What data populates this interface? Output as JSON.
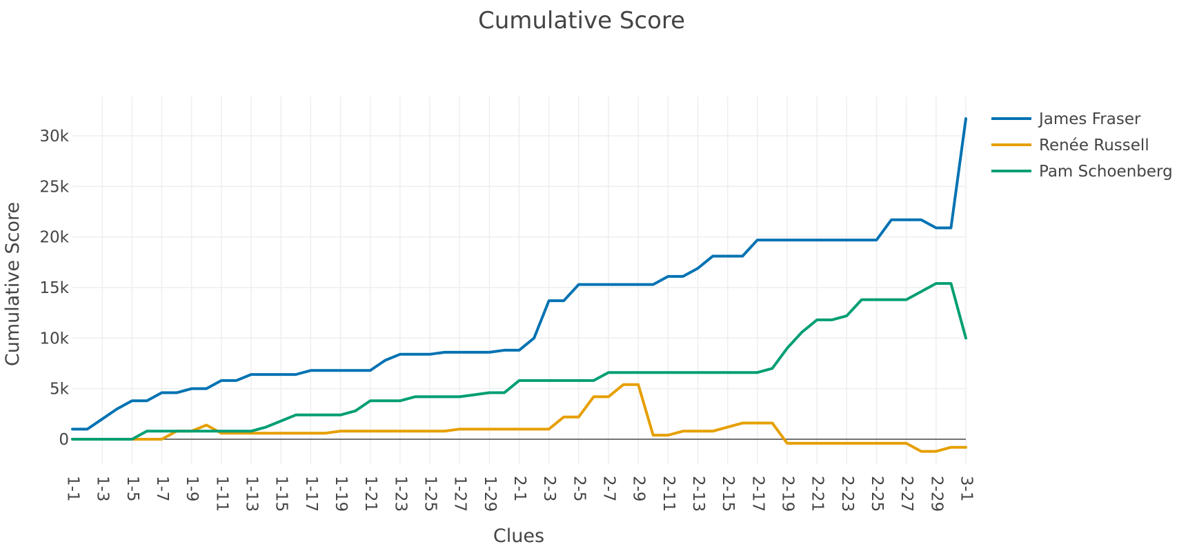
{
  "chart_data": {
    "type": "line",
    "title": "Cumulative Score",
    "xlabel": "Clues",
    "ylabel": "Cumulative Score",
    "categories": [
      "1-1",
      "1-2",
      "1-3",
      "1-4",
      "1-5",
      "1-6",
      "1-7",
      "1-8",
      "1-9",
      "1-10",
      "1-11",
      "1-12",
      "1-13",
      "1-14",
      "1-15",
      "1-16",
      "1-17",
      "1-18",
      "1-19",
      "1-20",
      "1-21",
      "1-22",
      "1-23",
      "1-24",
      "1-25",
      "1-26",
      "1-27",
      "1-28",
      "1-29",
      "1-30",
      "2-1",
      "2-2",
      "2-3",
      "2-4",
      "2-5",
      "2-6",
      "2-7",
      "2-8",
      "2-9",
      "2-10",
      "2-11",
      "2-12",
      "2-13",
      "2-14",
      "2-15",
      "2-16",
      "2-17",
      "2-18",
      "2-19",
      "2-20",
      "2-21",
      "2-22",
      "2-23",
      "2-24",
      "2-25",
      "2-26",
      "2-27",
      "2-28",
      "2-29",
      "2-30",
      "3-1"
    ],
    "tick_labels": [
      "1-1",
      "1-3",
      "1-5",
      "1-7",
      "1-9",
      "1-11",
      "1-13",
      "1-15",
      "1-17",
      "1-19",
      "1-21",
      "1-23",
      "1-25",
      "1-27",
      "1-29",
      "2-1",
      "2-3",
      "2-5",
      "2-7",
      "2-9",
      "2-11",
      "2-13",
      "2-15",
      "2-17",
      "2-19",
      "2-21",
      "2-23",
      "2-25",
      "2-27",
      "2-29",
      "3-1"
    ],
    "ylim": [
      -3000,
      33500
    ],
    "yticks": [
      0,
      5000,
      10000,
      15000,
      20000,
      25000,
      30000
    ],
    "ytick_labels": [
      "0",
      "5k",
      "10k",
      "15k",
      "20k",
      "25k",
      "30k"
    ],
    "grid": true,
    "legend_position": "top-right",
    "series": [
      {
        "name": "James Fraser",
        "color": "#0072b2",
        "values": [
          1000,
          1000,
          2000,
          3000,
          3800,
          3800,
          4600,
          4600,
          5000,
          5000,
          5800,
          5800,
          6400,
          6400,
          6400,
          6400,
          6800,
          6800,
          6800,
          6800,
          6800,
          7800,
          8400,
          8400,
          8400,
          8600,
          8600,
          8600,
          8600,
          8800,
          8800,
          10000,
          13700,
          13700,
          15300,
          15300,
          15300,
          15300,
          15300,
          15300,
          16100,
          16100,
          16900,
          18100,
          18100,
          18100,
          19700,
          19700,
          19700,
          19700,
          19700,
          19700,
          19700,
          19700,
          19700,
          21700,
          21700,
          21700,
          20900,
          20900,
          31700
        ]
      },
      {
        "name": "Renée Russell",
        "color": "#e69f00",
        "values": [
          0,
          0,
          0,
          0,
          0,
          0,
          0,
          800,
          800,
          1400,
          600,
          600,
          600,
          600,
          600,
          600,
          600,
          600,
          800,
          800,
          800,
          800,
          800,
          800,
          800,
          800,
          1000,
          1000,
          1000,
          1000,
          1000,
          1000,
          1000,
          2200,
          2200,
          4200,
          4200,
          5400,
          5400,
          400,
          400,
          800,
          800,
          800,
          1200,
          1600,
          1600,
          1600,
          -400,
          -400,
          -400,
          -400,
          -400,
          -400,
          -400,
          -400,
          -400,
          -1200,
          -1200,
          -800,
          -800
        ]
      },
      {
        "name": "Pam Schoenberg",
        "color": "#009e73",
        "values": [
          0,
          0,
          0,
          0,
          0,
          800,
          800,
          800,
          800,
          800,
          800,
          800,
          800,
          1200,
          1800,
          2400,
          2400,
          2400,
          2400,
          2800,
          3800,
          3800,
          3800,
          4200,
          4200,
          4200,
          4200,
          4400,
          4600,
          4600,
          5800,
          5800,
          5800,
          5800,
          5800,
          5800,
          6600,
          6600,
          6600,
          6600,
          6600,
          6600,
          6600,
          6600,
          6600,
          6600,
          6600,
          7000,
          9000,
          10600,
          11800,
          11800,
          12200,
          13800,
          13800,
          13800,
          13800,
          14600,
          15400,
          15400,
          10000
        ]
      }
    ]
  }
}
